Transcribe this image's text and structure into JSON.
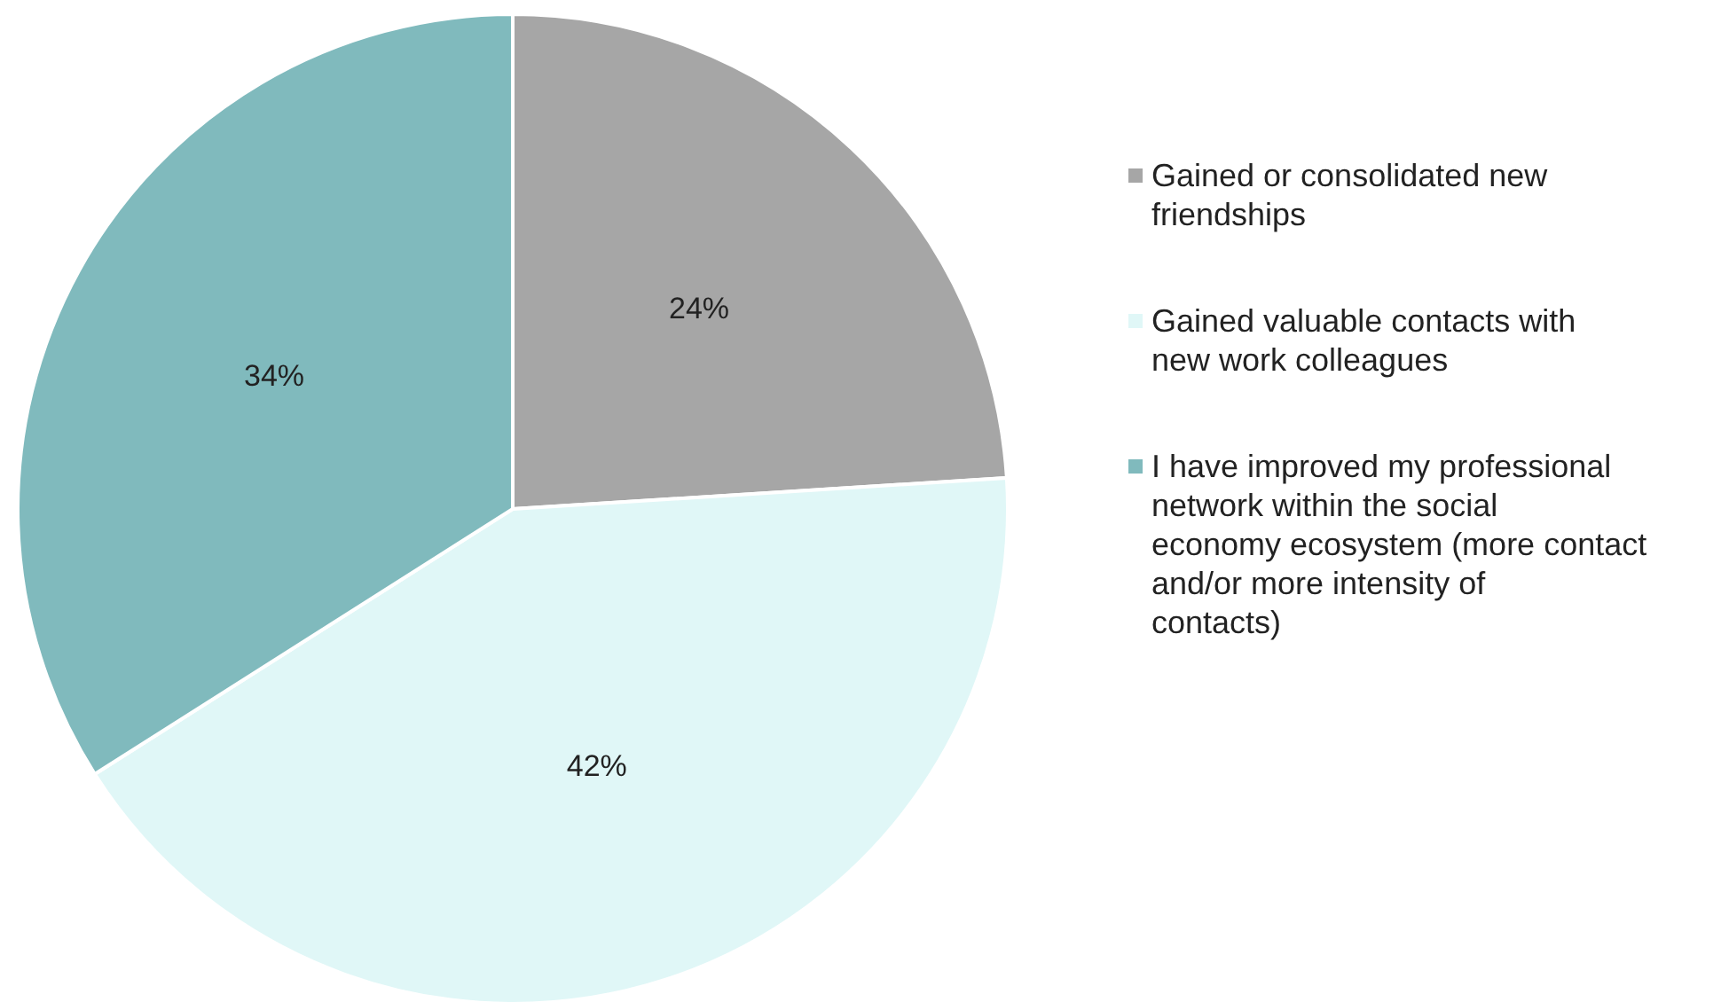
{
  "chart_data": {
    "type": "pie",
    "categories": [
      "Gained or consolidated new friendships",
      "Gained valuable contacts with new work colleagues",
      "I have improved my professional network within the social economy ecosystem (more contact and/or more intensity of contacts)"
    ],
    "values": [
      24,
      42,
      34
    ],
    "colors": [
      "#a6a6a6",
      "#e0f7f7",
      "#80babd"
    ],
    "value_labels": [
      "24%",
      "42%",
      "34%"
    ],
    "legend": "right"
  }
}
